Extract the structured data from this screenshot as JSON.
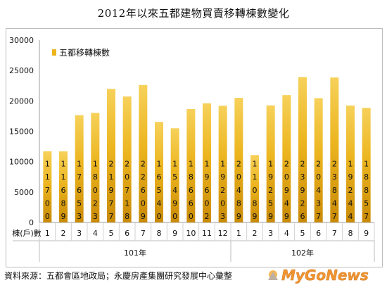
{
  "chart_data": {
    "type": "bar",
    "title": "2012年以來五都建物買賣移轉棟數變化",
    "series": [
      {
        "name": "五都移轉棟數",
        "values": [
          11700,
          11689,
          17653,
          18023,
          21977,
          20718,
          22609,
          16540,
          15490,
          18660,
          19602,
          19203,
          20489,
          11089,
          19259,
          20949,
          23926,
          20437,
          23847,
          19244,
          18857
        ]
      }
    ],
    "categories": [
      "1",
      "2",
      "3",
      "4",
      "5",
      "6",
      "7",
      "8",
      "9",
      "10",
      "11",
      "12",
      "1",
      "2",
      "3",
      "4",
      "5",
      "6",
      "7",
      "8",
      "9"
    ],
    "year_groups": [
      {
        "label": "101年",
        "count": 12
      },
      {
        "label": "102年",
        "count": 9
      }
    ],
    "xlabel": "棟(戶)數",
    "ylim": [
      0,
      30000
    ],
    "yticks": [
      "0",
      "5000",
      "10000",
      "15000",
      "20000",
      "25000",
      "30000"
    ],
    "grid": false,
    "legend": "top-left",
    "colors": {
      "bar_top": "#f6d15a",
      "bar_mid": "#ecb51f",
      "bar_bottom": "#c98a06",
      "label": "#111111"
    }
  },
  "source_text": "資料來源：五都會區地政局；永慶房產集團研究發展中心彙整",
  "watermark": "MyGoNews"
}
